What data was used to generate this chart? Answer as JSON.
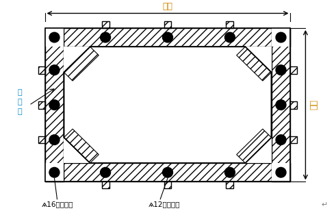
{
  "bg_color": "#ffffff",
  "dim_color": "#cc8800",
  "label_color_blue": "#0088cc",
  "black_dot_color": "#000000",
  "top_label": "柱宽",
  "right_label": "柱宽",
  "left_annotation": "柱\n钢\n筋",
  "bottom_left_label": "ѧ16鈢筋制作",
  "bottom_right_label": "ѧ12鈢筋制作",
  "figsize": [
    4.91,
    3.11
  ],
  "dpi": 100
}
